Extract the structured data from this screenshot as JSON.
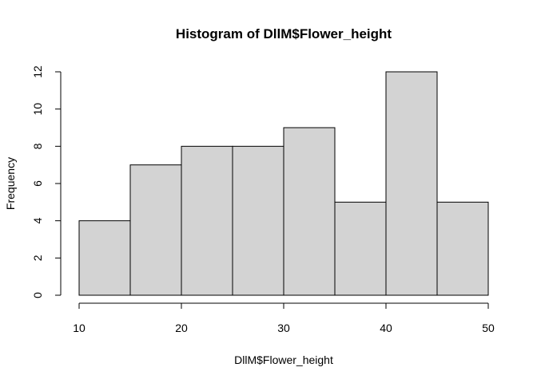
{
  "chart_data": {
    "type": "bar",
    "title": "Histogram of DllM$Flower_height",
    "xlabel": "DllM$Flower_height",
    "ylabel": "Frequency",
    "bins": [
      {
        "start": 10,
        "end": 15,
        "count": 4
      },
      {
        "start": 15,
        "end": 20,
        "count": 7
      },
      {
        "start": 20,
        "end": 25,
        "count": 8
      },
      {
        "start": 25,
        "end": 30,
        "count": 8
      },
      {
        "start": 30,
        "end": 35,
        "count": 9
      },
      {
        "start": 35,
        "end": 40,
        "count": 5
      },
      {
        "start": 40,
        "end": 45,
        "count": 12
      },
      {
        "start": 45,
        "end": 50,
        "count": 5
      }
    ],
    "xlim": [
      10,
      50
    ],
    "ylim": [
      0,
      12
    ],
    "x_ticks": [
      "10",
      "20",
      "30",
      "40",
      "50"
    ],
    "y_ticks": [
      "0",
      "2",
      "4",
      "6",
      "8",
      "10",
      "12"
    ],
    "grid": false,
    "colors": {
      "bar_fill": "#d3d3d3",
      "bar_stroke": "#000000",
      "axis": "#000000"
    }
  }
}
